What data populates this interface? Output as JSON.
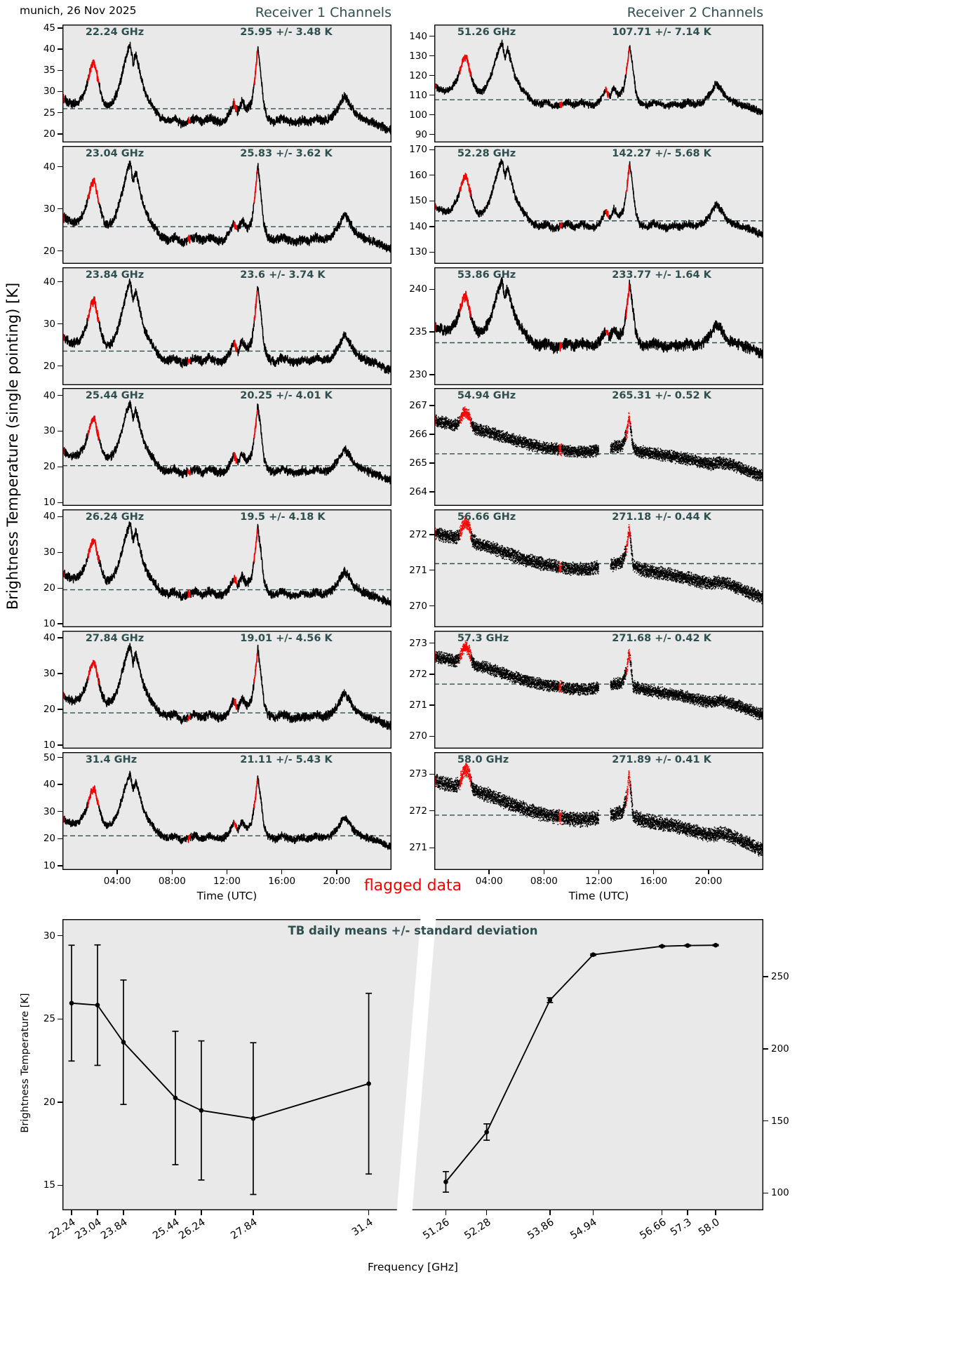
{
  "header": {
    "date_label": "munich, 26 Nov 2025",
    "receiver1_title": "Receiver 1 Channels",
    "receiver2_title": "Receiver 2 Channels"
  },
  "labels": {
    "ylabel_main": "Brightness Temperature (single pointing) [K]",
    "xlabel_time": "Time (UTC)",
    "flagged": "flagged data",
    "bottom_title": "TB daily means +/- standard deviation",
    "bottom_ylabel": "Brightness Temperature [K]",
    "bottom_xlabel": "Frequency [GHz]"
  },
  "colors": {
    "accent_darkslategray": "#2F4F4F",
    "flag_red": "#FF0000",
    "data_black": "#000000",
    "panel_bg": "#E9E9E9",
    "figure_bg": "#FFFFFF",
    "mean_dash": "#2F4F4F"
  },
  "chart_data": {
    "type": "line",
    "time_axis": {
      "range_hours": [
        0,
        24
      ],
      "ticks": [
        {
          "hour": 4,
          "label": "04:00"
        },
        {
          "hour": 8,
          "label": "08:00"
        },
        {
          "hour": 12,
          "label": "12:00"
        },
        {
          "hour": 16,
          "label": "16:00"
        },
        {
          "hour": 20,
          "label": "20:00"
        }
      ]
    },
    "profiles": {
      "A": [
        [
          0,
          0.5
        ],
        [
          0.3,
          0.47
        ],
        [
          0.7,
          0.44
        ],
        [
          1.2,
          0.46
        ],
        [
          1.6,
          0.55
        ],
        [
          1.9,
          0.68
        ],
        [
          2.1,
          0.8
        ],
        [
          2.35,
          0.83
        ],
        [
          2.6,
          0.66
        ],
        [
          2.9,
          0.5
        ],
        [
          3.2,
          0.42
        ],
        [
          3.6,
          0.44
        ],
        [
          4.0,
          0.55
        ],
        [
          4.4,
          0.75
        ],
        [
          4.7,
          0.92
        ],
        [
          4.95,
          1.0
        ],
        [
          5.15,
          0.82
        ],
        [
          5.35,
          0.92
        ],
        [
          5.6,
          0.78
        ],
        [
          5.9,
          0.6
        ],
        [
          6.3,
          0.48
        ],
        [
          6.8,
          0.38
        ],
        [
          7.2,
          0.31
        ],
        [
          7.7,
          0.28
        ],
        [
          8.2,
          0.31
        ],
        [
          8.7,
          0.25
        ],
        [
          9.2,
          0.28
        ],
        [
          9.7,
          0.31
        ],
        [
          10.2,
          0.27
        ],
        [
          10.7,
          0.31
        ],
        [
          11.2,
          0.28
        ],
        [
          11.7,
          0.27
        ],
        [
          12.1,
          0.33
        ],
        [
          12.5,
          0.45
        ],
        [
          12.8,
          0.37
        ],
        [
          13.1,
          0.47
        ],
        [
          13.45,
          0.39
        ],
        [
          13.8,
          0.45
        ],
        [
          14.05,
          0.7
        ],
        [
          14.25,
          0.97
        ],
        [
          14.45,
          0.75
        ],
        [
          14.7,
          0.42
        ],
        [
          15.0,
          0.3
        ],
        [
          15.5,
          0.27
        ],
        [
          16.0,
          0.31
        ],
        [
          16.5,
          0.28
        ],
        [
          17.0,
          0.26
        ],
        [
          17.5,
          0.29
        ],
        [
          18.0,
          0.27
        ],
        [
          18.5,
          0.31
        ],
        [
          19.0,
          0.28
        ],
        [
          19.6,
          0.31
        ],
        [
          20.1,
          0.4
        ],
        [
          20.55,
          0.52
        ],
        [
          20.9,
          0.46
        ],
        [
          21.3,
          0.36
        ],
        [
          21.8,
          0.31
        ],
        [
          22.3,
          0.28
        ],
        [
          22.8,
          0.26
        ],
        [
          23.3,
          0.23
        ],
        [
          23.7,
          0.2
        ],
        [
          24,
          0.19
        ]
      ],
      "B": [
        [
          0,
          0.84
        ],
        [
          0.5,
          0.82
        ],
        [
          1.0,
          0.8
        ],
        [
          1.5,
          0.78
        ],
        [
          1.85,
          0.82
        ],
        [
          2.1,
          0.93
        ],
        [
          2.3,
          0.96
        ],
        [
          2.55,
          0.9
        ],
        [
          2.8,
          0.76
        ],
        [
          3.2,
          0.72
        ],
        [
          3.8,
          0.7
        ],
        [
          4.5,
          0.66
        ],
        [
          5.2,
          0.62
        ],
        [
          6.0,
          0.58
        ],
        [
          6.8,
          0.54
        ],
        [
          7.5,
          0.51
        ],
        [
          8.2,
          0.49
        ],
        [
          9.0,
          0.47
        ],
        [
          9.8,
          0.45
        ],
        [
          10.5,
          0.44
        ],
        [
          11.2,
          0.44
        ],
        [
          11.9,
          0.46
        ],
        [
          12.6,
          0.48
        ],
        [
          13.2,
          0.5
        ],
        [
          13.7,
          0.52
        ],
        [
          14.05,
          0.68
        ],
        [
          14.2,
          0.9
        ],
        [
          14.35,
          0.72
        ],
        [
          14.5,
          0.48
        ],
        [
          15.0,
          0.44
        ],
        [
          15.8,
          0.42
        ],
        [
          16.5,
          0.4
        ],
        [
          17.2,
          0.38
        ],
        [
          18.0,
          0.36
        ],
        [
          18.8,
          0.33
        ],
        [
          19.5,
          0.3
        ],
        [
          20.2,
          0.28
        ],
        [
          20.8,
          0.3
        ],
        [
          21.4,
          0.28
        ],
        [
          22.0,
          0.25
        ],
        [
          22.6,
          0.21
        ],
        [
          23.2,
          0.17
        ],
        [
          23.7,
          0.14
        ],
        [
          24,
          0.13
        ]
      ]
    },
    "flag_windows": {
      "A": [
        [
          0,
          0.12
        ],
        [
          1.85,
          2.65
        ],
        [
          9.15,
          9.32
        ],
        [
          12.5,
          12.72
        ],
        [
          13.98,
          14.22
        ]
      ],
      "B": [
        [
          0,
          0.12
        ],
        [
          1.85,
          2.7
        ],
        [
          9.1,
          9.28
        ],
        [
          14.0,
          14.3
        ]
      ]
    },
    "gap_windows": {
      "A": [],
      "B": [
        [
          12.0,
          12.85
        ]
      ]
    },
    "receivers": [
      {
        "panels": [
          {
            "freq_label": "22.24 GHz",
            "stat_label": "25.95 +/- 3.48 K",
            "mean": 25.95,
            "std": 3.48,
            "ylim": [
              18,
              45.8
            ],
            "yticks": [
              20,
              25,
              30,
              35,
              40,
              45
            ],
            "profile": "A",
            "lo": 16,
            "hi": 41,
            "noise": 0.03,
            "style": "line",
            "seed": 1
          },
          {
            "freq_label": "23.04 GHz",
            "stat_label": "25.83 +/- 3.62 K",
            "mean": 25.83,
            "std": 3.62,
            "ylim": [
              17,
              45
            ],
            "yticks": [
              20,
              30,
              40
            ],
            "profile": "A",
            "lo": 15.5,
            "hi": 41,
            "noise": 0.03,
            "style": "line",
            "seed": 2
          },
          {
            "freq_label": "23.84 GHz",
            "stat_label": "23.6 +/- 3.74 K",
            "mean": 23.6,
            "std": 3.74,
            "ylim": [
              15.5,
              43.5
            ],
            "yticks": [
              20,
              30,
              40
            ],
            "profile": "A",
            "lo": 14,
            "hi": 40,
            "noise": 0.03,
            "style": "line",
            "seed": 3
          },
          {
            "freq_label": "25.44 GHz",
            "stat_label": "20.25 +/- 4.01 K",
            "mean": 20.25,
            "std": 4.01,
            "ylim": [
              9,
              42
            ],
            "yticks": [
              10,
              20,
              30,
              40
            ],
            "profile": "A",
            "lo": 11,
            "hi": 38,
            "noise": 0.032,
            "style": "line",
            "seed": 4
          },
          {
            "freq_label": "26.24 GHz",
            "stat_label": "19.5 +/- 4.18 K",
            "mean": 19.5,
            "std": 4.18,
            "ylim": [
              9,
              42
            ],
            "yticks": [
              10,
              20,
              30,
              40
            ],
            "profile": "A",
            "lo": 10.5,
            "hi": 38,
            "noise": 0.032,
            "style": "line",
            "seed": 5
          },
          {
            "freq_label": "27.84 GHz",
            "stat_label": "19.01 +/- 4.56 K",
            "mean": 19.01,
            "std": 4.56,
            "ylim": [
              9,
              42
            ],
            "yticks": [
              10,
              20,
              30,
              40
            ],
            "profile": "A",
            "lo": 10,
            "hi": 38,
            "noise": 0.032,
            "style": "line",
            "seed": 6
          },
          {
            "freq_label": "31.4 GHz",
            "stat_label": "21.11 +/- 5.43 K",
            "mean": 21.11,
            "std": 5.43,
            "ylim": [
              8.5,
              52
            ],
            "yticks": [
              10,
              20,
              30,
              40,
              50
            ],
            "profile": "A",
            "lo": 11,
            "hi": 44,
            "noise": 0.03,
            "style": "line",
            "seed": 7
          }
        ]
      },
      {
        "panels": [
          {
            "freq_label": "51.26 GHz",
            "stat_label": "107.71 +/- 7.14 K",
            "mean": 107.71,
            "std": 7.14,
            "ylim": [
              86,
              146
            ],
            "yticks": [
              90,
              100,
              110,
              120,
              130,
              140
            ],
            "profile": "A",
            "lo": 93,
            "hi": 137,
            "noise": 0.03,
            "style": "line",
            "seed": 11
          },
          {
            "freq_label": "52.28 GHz",
            "stat_label": "142.27 +/- 5.68 K",
            "mean": 142.27,
            "std": 5.68,
            "ylim": [
              125.5,
              171.5
            ],
            "yticks": [
              130,
              140,
              150,
              160,
              170
            ],
            "profile": "A",
            "lo": 130,
            "hi": 166,
            "noise": 0.03,
            "style": "line",
            "seed": 12
          },
          {
            "freq_label": "53.86 GHz",
            "stat_label": "233.77 +/- 1.64 K",
            "mean": 233.77,
            "std": 1.64,
            "ylim": [
              228.8,
              242.6
            ],
            "yticks": [
              230,
              235,
              240
            ],
            "profile": "A",
            "lo": 230.5,
            "hi": 241,
            "noise": 0.045,
            "style": "line",
            "seed": 13
          },
          {
            "freq_label": "54.94 GHz",
            "stat_label": "265.31 +/- 0.52 K",
            "mean": 265.31,
            "std": 0.52,
            "ylim": [
              263.5,
              267.6
            ],
            "yticks": [
              264,
              265,
              266,
              267
            ],
            "profile": "B",
            "lo": 264.2,
            "hi": 266.9,
            "noise": 0.085,
            "style": "dots",
            "seed": 14
          },
          {
            "freq_label": "56.66 GHz",
            "stat_label": "271.18 +/- 0.44 K",
            "mean": 271.18,
            "std": 0.44,
            "ylim": [
              269.4,
              272.7
            ],
            "yticks": [
              270,
              271,
              272
            ],
            "profile": "B",
            "lo": 269.9,
            "hi": 272.45,
            "noise": 0.08,
            "style": "dots",
            "seed": 15
          },
          {
            "freq_label": "57.3 GHz",
            "stat_label": "271.68 +/- 0.42 K",
            "mean": 271.68,
            "std": 0.42,
            "ylim": [
              269.6,
              273.4
            ],
            "yticks": [
              270,
              271,
              272,
              273
            ],
            "profile": "B",
            "lo": 270.35,
            "hi": 273.0,
            "noise": 0.08,
            "style": "dots",
            "seed": 16
          },
          {
            "freq_label": "58.0 GHz",
            "stat_label": "271.89 +/- 0.41 K",
            "mean": 271.89,
            "std": 0.41,
            "ylim": [
              270.4,
              273.6
            ],
            "yticks": [
              271,
              272,
              273
            ],
            "profile": "B",
            "lo": 270.6,
            "hi": 273.25,
            "noise": 0.08,
            "style": "dots",
            "seed": 17
          }
        ]
      }
    ],
    "bottom": {
      "left_axis": {
        "lim": [
          13.5,
          31
        ],
        "ticks": [
          15,
          20,
          25,
          30
        ]
      },
      "right_axis": {
        "lim": [
          88,
          290
        ],
        "ticks": [
          100,
          150,
          200,
          250
        ]
      },
      "series": [
        {
          "name": "receiver1",
          "axis": "left",
          "freqs": [
            22.24,
            23.04,
            23.84,
            25.44,
            26.24,
            27.84,
            31.4
          ],
          "means": [
            25.95,
            25.83,
            23.6,
            20.25,
            19.5,
            19.01,
            21.11
          ],
          "stds": [
            3.48,
            3.62,
            3.74,
            4.01,
            4.18,
            4.56,
            5.43
          ],
          "seg_frac": [
            0.013,
            0.437
          ]
        },
        {
          "name": "receiver2",
          "axis": "right",
          "freqs": [
            51.26,
            52.28,
            53.86,
            54.94,
            56.66,
            57.3,
            58.0
          ],
          "means": [
            107.71,
            142.27,
            233.77,
            265.31,
            271.18,
            271.68,
            271.89
          ],
          "stds": [
            7.14,
            5.68,
            1.64,
            0.52,
            0.44,
            0.42,
            0.41
          ],
          "seg_frac": [
            0.547,
            0.932
          ]
        }
      ],
      "xtick_labels": [
        [
          "22.24",
          "23.04",
          "23.84",
          "25.44",
          "26.24",
          "27.84",
          "31.4"
        ],
        [
          "51.26",
          "52.28",
          "53.86",
          "54.94",
          "56.66",
          "57.3",
          "58.0"
        ]
      ],
      "break_frac": 0.505
    }
  }
}
